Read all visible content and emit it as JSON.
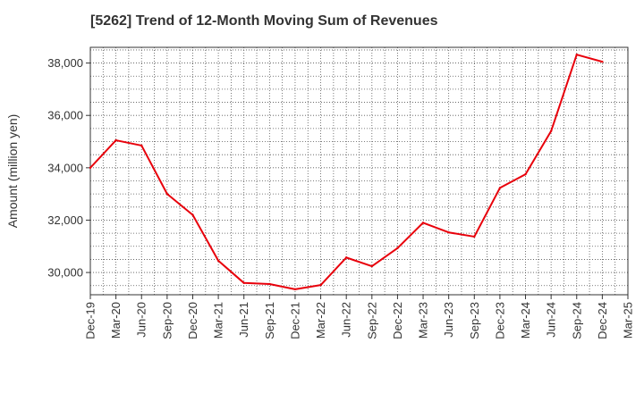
{
  "chart_data": {
    "type": "line",
    "title": "[5262]  Trend of 12-Month Moving Sum of Revenues",
    "xlabel": "",
    "ylabel": "Amount (million yen)",
    "categories": [
      "Dec-19",
      "Mar-20",
      "Jun-20",
      "Sep-20",
      "Dec-20",
      "Mar-21",
      "Jun-21",
      "Sep-21",
      "Dec-21",
      "Mar-22",
      "Jun-22",
      "Sep-22",
      "Dec-22",
      "Mar-23",
      "Jun-23",
      "Sep-23",
      "Dec-23",
      "Mar-24",
      "Jun-24",
      "Sep-24",
      "Dec-24",
      "Mar-25"
    ],
    "series": [
      {
        "name": "",
        "color": "#e8000b",
        "values": [
          34000,
          35050,
          34850,
          33000,
          32200,
          30450,
          29600,
          29560,
          29360,
          29520,
          30570,
          30240,
          30930,
          31900,
          31530,
          31370,
          33230,
          33750,
          35400,
          38320,
          38050,
          null
        ]
      }
    ],
    "ylim": [
      29150,
      38600
    ],
    "yticks": [
      30000,
      32000,
      34000,
      36000,
      38000
    ],
    "ytick_labels": [
      "30,000",
      "32,000",
      "34,000",
      "36,000",
      "38,000"
    ],
    "grid": true,
    "legend": "none"
  }
}
